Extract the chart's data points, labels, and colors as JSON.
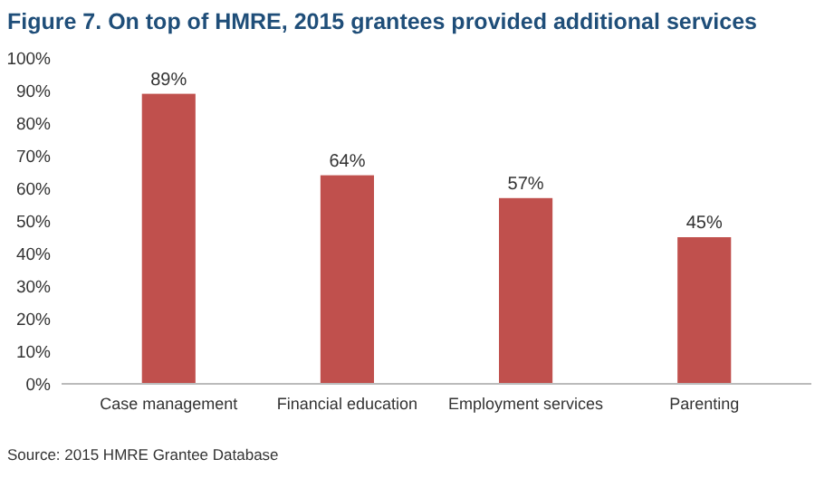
{
  "chart_data": {
    "type": "bar",
    "title": "Figure 7. On top of HMRE, 2015 grantees provided additional services",
    "categories": [
      "Case management",
      "Financial education",
      "Employment services",
      "Parenting"
    ],
    "values": [
      89,
      64,
      57,
      45
    ],
    "value_labels": [
      "89%",
      "64%",
      "57%",
      "45%"
    ],
    "color": "#c0504d",
    "ylim": [
      0,
      100
    ],
    "yticks": [
      {
        "value": 0,
        "label": "0%"
      },
      {
        "value": 10,
        "label": "10%"
      },
      {
        "value": 20,
        "label": "20%"
      },
      {
        "value": 30,
        "label": "30%"
      },
      {
        "value": 40,
        "label": "40%"
      },
      {
        "value": 50,
        "label": "50%"
      },
      {
        "value": 60,
        "label": "60%"
      },
      {
        "value": 70,
        "label": "70%"
      },
      {
        "value": 80,
        "label": "80%"
      },
      {
        "value": 90,
        "label": "90%"
      },
      {
        "value": 100,
        "label": "100%"
      }
    ],
    "grid": false,
    "annotations": [
      "Source: 2015 HMRE Grantee Database"
    ]
  }
}
